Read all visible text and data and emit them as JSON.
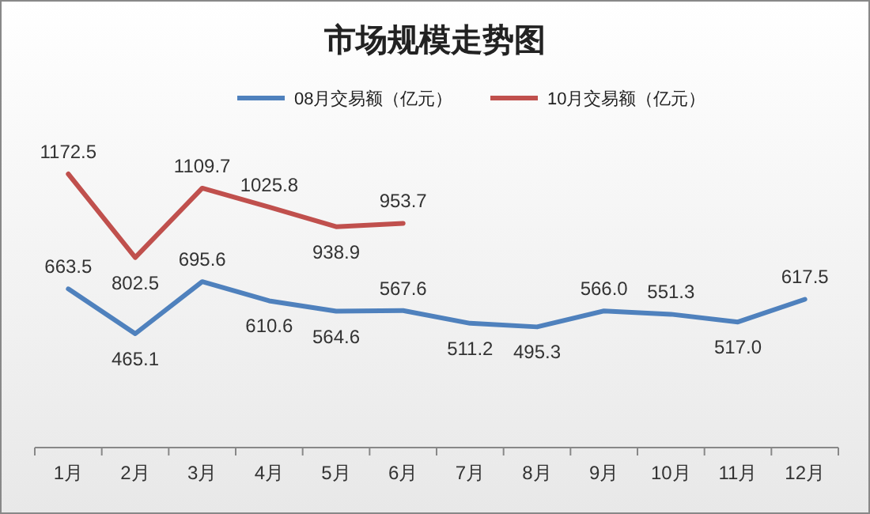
{
  "chart_data": {
    "type": "line",
    "title": "市场规模走势图",
    "categories": [
      "1月",
      "2月",
      "3月",
      "4月",
      "5月",
      "6月",
      "7月",
      "8月",
      "9月",
      "10月",
      "11月",
      "12月"
    ],
    "series": [
      {
        "name": "08月交易额（亿元）",
        "color": "#4f81bd",
        "values": [
          663.5,
          465.1,
          695.6,
          610.6,
          564.6,
          567.6,
          511.2,
          495.3,
          566.0,
          551.3,
          517.0,
          617.5
        ],
        "value_labels": [
          "663.5",
          "465.1",
          "695.6",
          "610.6",
          "564.6",
          "567.6",
          "511.2",
          "495.3",
          "566.0",
          "551.3",
          "517.0",
          "617.5"
        ]
      },
      {
        "name": "10月交易额（亿元）",
        "color": "#c0504d",
        "values": [
          1172.5,
          802.5,
          1109.7,
          1025.8,
          938.9,
          953.7,
          null,
          null,
          null,
          null,
          null,
          null
        ],
        "value_labels": [
          "1172.5",
          "802.5",
          "1109.7",
          "1025.8",
          "938.9",
          "953.7",
          null,
          null,
          null,
          null,
          null,
          null
        ]
      }
    ],
    "legend": "top",
    "marker": "none",
    "line_style": "solid"
  }
}
